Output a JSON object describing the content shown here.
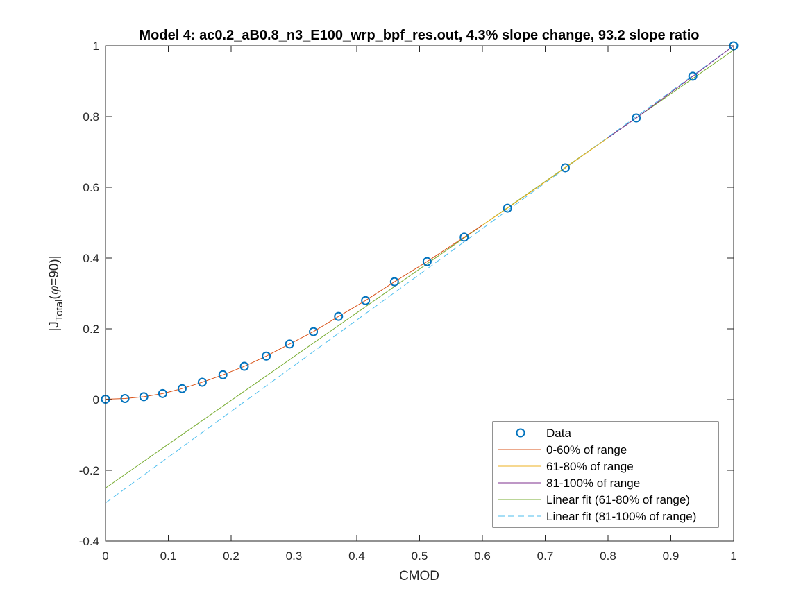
{
  "chart_data": {
    "type": "line",
    "title": "Model 4: ac0.2_aB0.8_n3_E100_wrp_bpf_res.out, 4.3% slope change, 93.2 slope ratio",
    "xlabel": "CMOD",
    "ylabel_prefix": "|J",
    "ylabel_sub": "Total",
    "ylabel_mid": "(",
    "ylabel_phi": "φ",
    "ylabel_suffix": "=90)|",
    "xlim": [
      0,
      1
    ],
    "ylim": [
      -0.4,
      1
    ],
    "xticks": [
      0,
      0.1,
      0.2,
      0.3,
      0.4,
      0.5,
      0.6,
      0.7,
      0.8,
      0.9,
      1
    ],
    "xtick_labels": [
      "0",
      "0.1",
      "0.2",
      "0.3",
      "0.4",
      "0.5",
      "0.6",
      "0.7",
      "0.8",
      "0.9",
      "1"
    ],
    "yticks": [
      -0.4,
      -0.2,
      0,
      0.2,
      0.4,
      0.6,
      0.8,
      1
    ],
    "ytick_labels": [
      "-0.4",
      "-0.2",
      "0",
      "0.2",
      "0.4",
      "0.6",
      "0.8",
      "1"
    ],
    "grid": false,
    "legend_position": "bottom-right",
    "series": [
      {
        "name": "Data",
        "style": "marker-circle",
        "color": "#0072BD",
        "x": [
          0,
          0.031,
          0.061,
          0.091,
          0.122,
          0.154,
          0.187,
          0.221,
          0.256,
          0.293,
          0.331,
          0.371,
          0.414,
          0.46,
          0.512,
          0.571,
          0.64,
          0.732,
          0.845,
          0.935,
          1.0
        ],
        "y": [
          0.001,
          0.003,
          0.008,
          0.017,
          0.031,
          0.049,
          0.07,
          0.094,
          0.123,
          0.157,
          0.192,
          0.235,
          0.28,
          0.333,
          0.39,
          0.459,
          0.541,
          0.655,
          0.796,
          0.914,
          1.0
        ]
      },
      {
        "name": "0-60% of range",
        "style": "line",
        "color": "#D95319",
        "x": [
          0,
          0.031,
          0.061,
          0.091,
          0.122,
          0.154,
          0.187,
          0.221,
          0.256,
          0.293,
          0.331,
          0.371,
          0.414,
          0.46,
          0.512,
          0.571,
          0.6
        ],
        "y": [
          0.001,
          0.003,
          0.008,
          0.017,
          0.031,
          0.049,
          0.07,
          0.094,
          0.123,
          0.157,
          0.192,
          0.235,
          0.28,
          0.333,
          0.39,
          0.459,
          0.493
        ]
      },
      {
        "name": "61-80% of range",
        "style": "line",
        "color": "#EDB120",
        "x": [
          0.6,
          0.64,
          0.732,
          0.8
        ],
        "y": [
          0.493,
          0.541,
          0.655,
          0.74
        ]
      },
      {
        "name": "81-100% of range",
        "style": "line",
        "color": "#7E2F8E",
        "x": [
          0.8,
          0.845,
          0.935,
          1.0
        ],
        "y": [
          0.74,
          0.796,
          0.914,
          1.0
        ]
      },
      {
        "name": "Linear fit (61-80% of range)",
        "style": "line",
        "color": "#77AC30",
        "x": [
          0,
          1
        ],
        "y": [
          -0.25,
          0.988
        ]
      },
      {
        "name": "Linear fit (81-100% of range)",
        "style": "dashed",
        "color": "#4DBEEE",
        "x": [
          0,
          1
        ],
        "y": [
          -0.292,
          1.0
        ]
      }
    ]
  }
}
